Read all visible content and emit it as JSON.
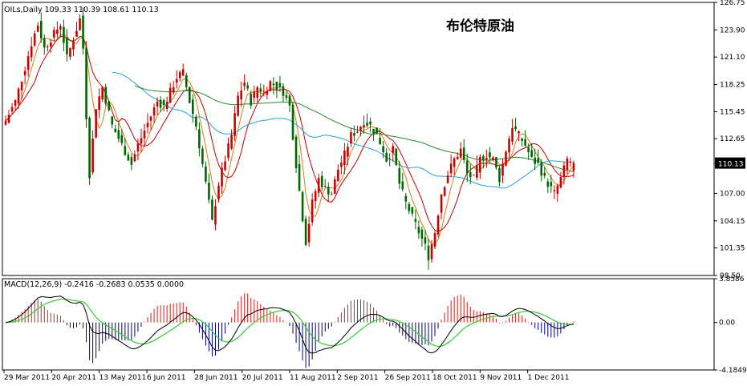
{
  "symbol_line": "OILs,Daily  109.33 110.39 108.61 110.13",
  "title": "布伦特原油",
  "current_price_label": "110.13",
  "macd_line": "MACD(12,26,9) -0.2416 -0.2683 0.0535 0.0000",
  "colors": {
    "bull": "#cc0000",
    "bear": "#006600",
    "ma_orange": "#e07a10",
    "ma_red": "#c00000",
    "ma_blue": "#2aa0e0",
    "ma_green": "#2a8a2a",
    "macd_main": "#000000",
    "macd_signal": "#33cc33",
    "hist_pos": "#cc2222",
    "hist_neg": "#000080",
    "grid": "#000000",
    "frame": "#000000"
  },
  "chart_data": [
    {
      "type": "candlestick",
      "title": "布伦特原油",
      "ylim": [
        98.5,
        126.75
      ],
      "yticks": [
        "126.75",
        "123.90",
        "121.10",
        "118.25",
        "115.45",
        "112.65",
        "110.13",
        "107.00",
        "104.15",
        "101.35",
        "98.50"
      ],
      "xticks": [
        "29 Mar 2011",
        "20 Apr 2011",
        "13 May 2011",
        "6 Jun 2011",
        "28 Jun 2011",
        "20 Jul 2011",
        "11 Aug 2011",
        "2 Sep 2011",
        "26 Sep 2011",
        "18 Oct 2011",
        "9 Nov 2011",
        "1 Dec 2011"
      ],
      "anchors": [
        [
          0,
          114.5
        ],
        [
          3,
          116.5
        ],
        [
          6,
          120
        ],
        [
          8,
          122.5
        ],
        [
          10,
          124.5
        ],
        [
          12,
          122
        ],
        [
          15,
          123.5
        ],
        [
          17,
          124.5
        ],
        [
          19,
          121
        ],
        [
          21,
          123
        ],
        [
          23,
          125
        ],
        [
          24,
          122
        ],
        [
          25,
          115
        ],
        [
          26,
          109
        ],
        [
          28,
          116
        ],
        [
          30,
          118
        ],
        [
          33,
          114
        ],
        [
          36,
          112
        ],
        [
          39,
          110
        ],
        [
          41,
          112
        ],
        [
          43,
          113.5
        ],
        [
          45,
          115
        ],
        [
          47,
          116.5
        ],
        [
          49,
          116
        ],
        [
          51,
          117.5
        ],
        [
          53,
          119
        ],
        [
          55,
          119.5
        ],
        [
          57,
          116.5
        ],
        [
          59,
          114
        ],
        [
          61,
          110
        ],
        [
          63,
          106
        ],
        [
          64,
          104
        ],
        [
          66,
          108
        ],
        [
          68,
          110.5
        ],
        [
          70,
          113
        ],
        [
          72,
          117
        ],
        [
          74,
          118.5
        ],
        [
          76,
          116.5
        ],
        [
          78,
          118
        ],
        [
          80,
          117.5
        ],
        [
          82,
          118.5
        ],
        [
          84,
          118
        ],
        [
          86,
          117.5
        ],
        [
          88,
          116
        ],
        [
          90,
          110
        ],
        [
          92,
          104.5
        ],
        [
          93,
          102
        ],
        [
          95,
          106
        ],
        [
          97,
          108.5
        ],
        [
          99,
          107.5
        ],
        [
          101,
          107
        ],
        [
          103,
          109.5
        ],
        [
          105,
          111
        ],
        [
          107,
          113
        ],
        [
          109,
          113.5
        ],
        [
          111,
          114.5
        ],
        [
          113,
          114
        ],
        [
          115,
          113
        ],
        [
          117,
          111.5
        ],
        [
          118,
          110.5
        ],
        [
          120,
          111.5
        ],
        [
          122,
          108
        ],
        [
          124,
          106
        ],
        [
          126,
          104.5
        ],
        [
          128,
          103
        ],
        [
          130,
          101.5
        ],
        [
          131,
          100.5
        ],
        [
          133,
          103
        ],
        [
          135,
          107
        ],
        [
          137,
          109
        ],
        [
          139,
          110.5
        ],
        [
          141,
          111.5
        ],
        [
          143,
          109
        ],
        [
          145,
          108.5
        ],
        [
          147,
          110.5
        ],
        [
          149,
          111
        ],
        [
          151,
          110.5
        ],
        [
          153,
          108.5
        ],
        [
          155,
          111.5
        ],
        [
          157,
          114
        ],
        [
          159,
          113
        ],
        [
          161,
          112
        ],
        [
          163,
          110.5
        ],
        [
          165,
          110
        ],
        [
          167,
          108.5
        ],
        [
          169,
          107.5
        ],
        [
          170,
          107
        ],
        [
          172,
          108.5
        ],
        [
          174,
          110.5
        ],
        [
          176,
          110.1
        ]
      ],
      "last_price": 110.13,
      "series": [
        {
          "name": "",
          "period": 5,
          "color": "orange"
        },
        {
          "name": "",
          "period": 10,
          "color": "red"
        },
        {
          "name": "",
          "period": 34,
          "color": "blue"
        },
        {
          "name": "",
          "period": 89,
          "color": "green"
        }
      ]
    },
    {
      "type": "macd",
      "title": "MACD(12,26,9)",
      "values": {
        "macd": -0.2416,
        "signal": -0.2683,
        "histogram": 0.0535,
        "extra": 0.0
      },
      "ylim": [
        -4.1849,
        3.8586
      ],
      "yticks": [
        "3.8586",
        "0.00",
        "-4.1849"
      ]
    }
  ]
}
